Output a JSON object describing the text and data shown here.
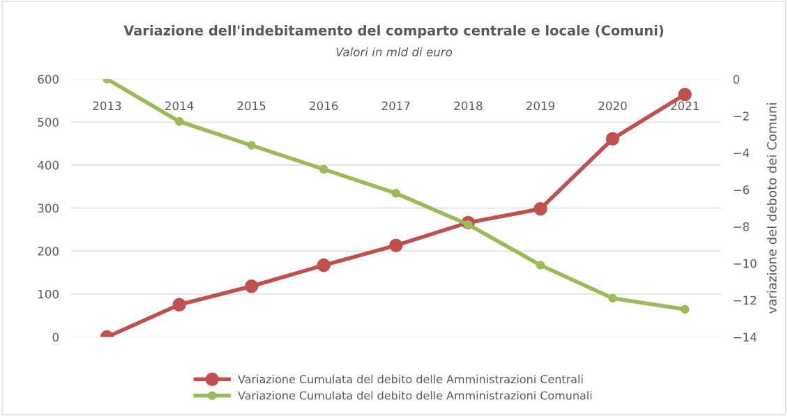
{
  "chart_data": {
    "type": "line",
    "title": "Variazione dell'indebitamento del comparto centrale e locale (Comuni)",
    "subtitle": "Valori in mld di euro",
    "y2label": "variazione del deboto dei Comuni",
    "categories": [
      "2013",
      "2014",
      "2015",
      "2016",
      "2017",
      "2018",
      "2019",
      "2020",
      "2021"
    ],
    "series": [
      {
        "name": "Variazione Cumulata del debito delle Amministrazioni Centrali",
        "color": "#c0504d",
        "values": [
          0,
          75,
          118,
          167,
          213,
          266,
          298,
          461,
          564
        ]
      },
      {
        "name": "Variazione Cumulata del debito delle Amministrazioni Comunali",
        "color": "#9bbb59",
        "axis": "y2",
        "values": [
          0,
          -2.3,
          -3.6,
          -4.9,
          -6.2,
          -7.9,
          -10.1,
          -11.9,
          -12.5
        ]
      }
    ],
    "ylim": [
      0,
      600
    ],
    "yticks": [
      0,
      100,
      200,
      300,
      400,
      500,
      600
    ],
    "y2lim": [
      -14,
      0
    ],
    "y2ticks": [
      -14,
      -12,
      -10,
      -8,
      -6,
      -4,
      -2,
      0
    ],
    "grid": "y",
    "legend": "bottom",
    "marker": "circle",
    "line_style": "solid"
  }
}
